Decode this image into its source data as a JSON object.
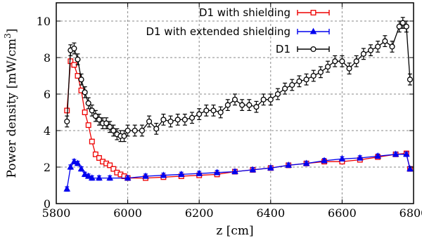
{
  "chart_data": {
    "type": "line",
    "xlabel": "z [cm]",
    "ylabel": "Power  density  [mW/cm³]",
    "xlim": [
      5800,
      6800
    ],
    "ylim": [
      0,
      11
    ],
    "x_ticks": [
      5800,
      6000,
      6200,
      6400,
      6600,
      6800
    ],
    "y_ticks": [
      0,
      2,
      4,
      6,
      8,
      10
    ],
    "grid": true,
    "legend_position": "top-right",
    "series": [
      {
        "name": "D1 with shielding",
        "color": "#ee0000",
        "marker": "square",
        "x": [
          5830,
          5840,
          5850,
          5860,
          5870,
          5880,
          5890,
          5900,
          5910,
          5920,
          5930,
          5940,
          5950,
          5960,
          5970,
          5980,
          5990,
          6000,
          6050,
          6100,
          6150,
          6200,
          6250,
          6300,
          6350,
          6400,
          6450,
          6500,
          6550,
          6600,
          6650,
          6700,
          6750,
          6780,
          6790
        ],
        "y": [
          5.1,
          7.8,
          7.6,
          7.0,
          6.2,
          5.0,
          4.3,
          3.4,
          2.7,
          2.5,
          2.3,
          2.2,
          2.1,
          1.9,
          1.7,
          1.6,
          1.5,
          1.4,
          1.4,
          1.45,
          1.5,
          1.55,
          1.6,
          1.75,
          1.85,
          1.95,
          2.1,
          2.2,
          2.3,
          2.3,
          2.4,
          2.55,
          2.7,
          2.75,
          1.9
        ],
        "yerr": 0.12
      },
      {
        "name": "D1 with extended shielding",
        "color": "#0000ee",
        "marker": "triangle",
        "x": [
          5830,
          5840,
          5850,
          5860,
          5870,
          5880,
          5890,
          5900,
          5920,
          5950,
          6000,
          6050,
          6100,
          6150,
          6200,
          6250,
          6300,
          6350,
          6400,
          6450,
          6500,
          6550,
          6600,
          6650,
          6700,
          6750,
          6780,
          6790
        ],
        "y": [
          0.8,
          2.0,
          2.3,
          2.2,
          1.9,
          1.6,
          1.5,
          1.4,
          1.4,
          1.4,
          1.4,
          1.5,
          1.55,
          1.6,
          1.65,
          1.7,
          1.75,
          1.85,
          1.95,
          2.1,
          2.2,
          2.35,
          2.45,
          2.5,
          2.6,
          2.7,
          2.7,
          1.9
        ],
        "yerr": 0.12
      },
      {
        "name": "D1",
        "color": "#000000",
        "marker": "circle",
        "x": [
          5830,
          5840,
          5850,
          5860,
          5870,
          5880,
          5890,
          5900,
          5910,
          5920,
          5930,
          5940,
          5950,
          5960,
          5970,
          5980,
          5990,
          6000,
          6020,
          6040,
          6060,
          6080,
          6100,
          6120,
          6140,
          6160,
          6180,
          6200,
          6220,
          6240,
          6260,
          6280,
          6300,
          6320,
          6340,
          6360,
          6380,
          6400,
          6420,
          6440,
          6460,
          6480,
          6500,
          6520,
          6540,
          6560,
          6580,
          6600,
          6620,
          6640,
          6660,
          6680,
          6700,
          6720,
          6740,
          6760,
          6770,
          6780,
          6790
        ],
        "y": [
          4.5,
          8.4,
          8.5,
          7.9,
          6.8,
          6.1,
          5.5,
          5.1,
          4.8,
          4.6,
          4.4,
          4.4,
          4.2,
          4.0,
          3.8,
          3.7,
          3.7,
          4.0,
          4.0,
          4.0,
          4.5,
          4.1,
          4.6,
          4.5,
          4.6,
          4.6,
          4.7,
          4.9,
          5.1,
          5.1,
          5.0,
          5.4,
          5.7,
          5.4,
          5.4,
          5.3,
          5.7,
          5.7,
          6.0,
          6.3,
          6.5,
          6.7,
          6.8,
          7.0,
          7.2,
          7.5,
          7.8,
          7.8,
          7.4,
          7.8,
          8.2,
          8.4,
          8.6,
          8.9,
          8.6,
          9.7,
          9.9,
          9.7,
          6.8
        ],
        "yerr": 0.3
      }
    ]
  }
}
